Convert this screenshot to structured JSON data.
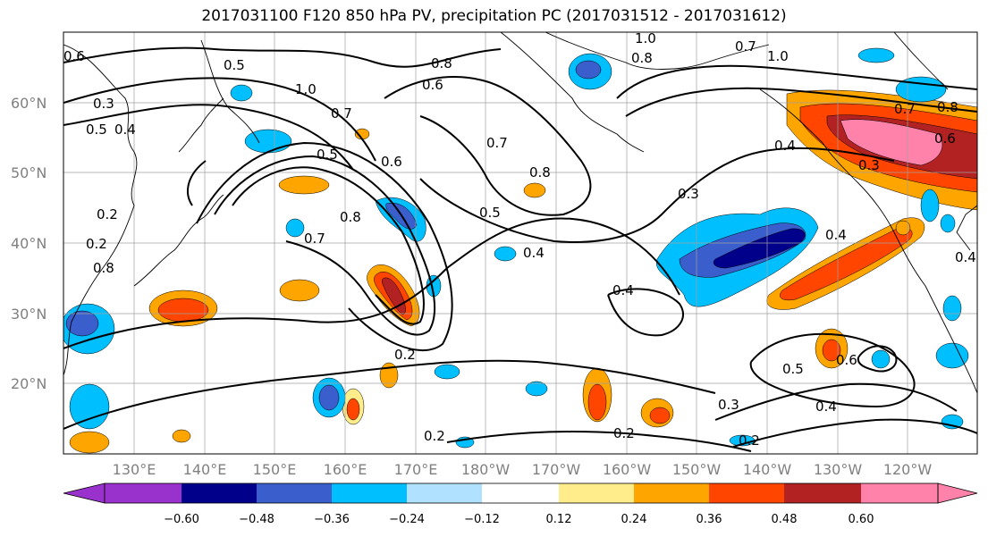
{
  "title": "2017031100 F120 850 hPa PV, precipitation PC (2017031512 - 2017031612)",
  "lat_labels": [
    "60°N",
    "50°N",
    "40°N",
    "30°N",
    "20°N"
  ],
  "lon_labels": [
    "130°E",
    "140°E",
    "150°E",
    "160°E",
    "170°E",
    "180°W",
    "170°W",
    "160°W",
    "150°W",
    "140°W",
    "130°W",
    "120°W"
  ],
  "colorbar": {
    "ticks": [
      "−0.60",
      "−0.48",
      "−0.36",
      "−0.24",
      "−0.12",
      "0.12",
      "0.24",
      "0.36",
      "0.48",
      "0.60"
    ],
    "colors": [
      "#9932cc",
      "#00008b",
      "#3a5fcd",
      "#00bfff",
      "#b0e2ff",
      "#ffffff",
      "#ffec8b",
      "#ffa500",
      "#ff4500",
      "#b22222",
      "#ff82ab"
    ]
  },
  "contour_labels": [
    "0.3",
    "0.5",
    "0.4",
    "0.5",
    "1.0",
    "0.7",
    "0.5",
    "0.6",
    "0.8",
    "0.6",
    "0.7",
    "0.8",
    "0.5",
    "0.7",
    "0.8",
    "0.4",
    "0.4",
    "0.3",
    "0.4",
    "0.2",
    "0.2",
    "0.2",
    "0.5",
    "0.4",
    "0.3",
    "0.2",
    "1.0",
    "0.8",
    "0.7",
    "1.0",
    "0.4",
    "0.3",
    "0.6",
    "0.7",
    "0.8",
    "0.4",
    "0.2",
    "0.8",
    "0.6",
    "0.2",
    "0.6"
  ]
}
